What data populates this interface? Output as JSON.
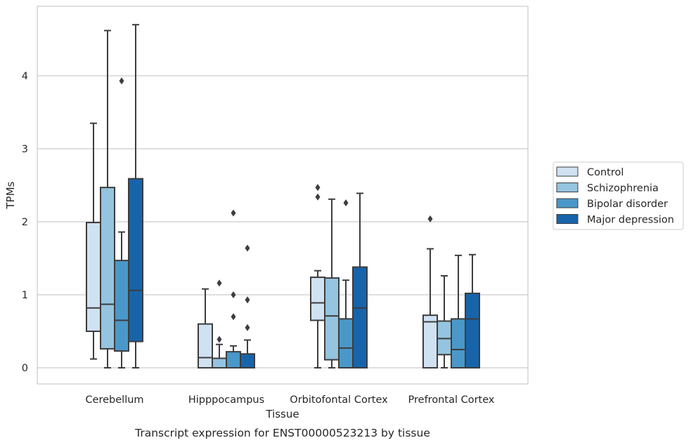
{
  "caption": "Transcript expression for ENST00000523213 by tissue",
  "chart_data": {
    "type": "box",
    "xlabel": "Tissue",
    "ylabel": "TPMs",
    "ylim": [
      -0.23,
      4.95
    ],
    "yticks": [
      0,
      1,
      2,
      3,
      4
    ],
    "grid": "horizontal",
    "legend_position": "right",
    "categories": [
      "Cerebellum",
      "Hipppocampus",
      "Orbitofontal Cortex",
      "Prefrontal Cortex"
    ],
    "series": [
      {
        "name": "Control",
        "color": "#d0e1f2",
        "boxes": [
          {
            "whisker_low": 0.12,
            "q1": 0.5,
            "median": 0.82,
            "q3": 1.99,
            "whisker_high": 3.35,
            "outliers": []
          },
          {
            "whisker_low": 0.0,
            "q1": 0.0,
            "median": 0.14,
            "q3": 0.6,
            "whisker_high": 1.08,
            "outliers": []
          },
          {
            "whisker_low": 0.0,
            "q1": 0.65,
            "median": 0.89,
            "q3": 1.24,
            "whisker_high": 1.33,
            "outliers": [
              2.34,
              2.47
            ]
          },
          {
            "whisker_low": 0.0,
            "q1": 0.0,
            "median": 0.63,
            "q3": 0.72,
            "whisker_high": 1.63,
            "outliers": [
              2.04
            ]
          }
        ]
      },
      {
        "name": "Schizophrenia",
        "color": "#94c4df",
        "boxes": [
          {
            "whisker_low": 0.0,
            "q1": 0.26,
            "median": 0.87,
            "q3": 2.47,
            "whisker_high": 4.62,
            "outliers": []
          },
          {
            "whisker_low": 0.0,
            "q1": 0.0,
            "median": 0.0,
            "q3": 0.13,
            "whisker_high": 0.32,
            "outliers": [
              0.39,
              1.16
            ]
          },
          {
            "whisker_low": 0.0,
            "q1": 0.11,
            "median": 0.71,
            "q3": 1.23,
            "whisker_high": 2.31,
            "outliers": []
          },
          {
            "whisker_low": 0.0,
            "q1": 0.18,
            "median": 0.4,
            "q3": 0.64,
            "whisker_high": 1.26,
            "outliers": []
          }
        ]
      },
      {
        "name": "Bipolar disorder",
        "color": "#4a98c9",
        "boxes": [
          {
            "whisker_low": 0.0,
            "q1": 0.23,
            "median": 0.65,
            "q3": 1.47,
            "whisker_high": 1.86,
            "outliers": [
              3.93
            ]
          },
          {
            "whisker_low": 0.0,
            "q1": 0.0,
            "median": 0.0,
            "q3": 0.22,
            "whisker_high": 0.3,
            "outliers": [
              0.7,
              1.0,
              2.12
            ]
          },
          {
            "whisker_low": 0.0,
            "q1": 0.0,
            "median": 0.27,
            "q3": 0.67,
            "whisker_high": 1.2,
            "outliers": [
              2.26
            ]
          },
          {
            "whisker_low": 0.0,
            "q1": 0.0,
            "median": 0.25,
            "q3": 0.67,
            "whisker_high": 1.54,
            "outliers": []
          }
        ]
      },
      {
        "name": "Major depression",
        "color": "#1764ab",
        "boxes": [
          {
            "whisker_low": 0.0,
            "q1": 0.36,
            "median": 1.06,
            "q3": 2.59,
            "whisker_high": 4.7,
            "outliers": []
          },
          {
            "whisker_low": 0.0,
            "q1": 0.0,
            "median": 0.0,
            "q3": 0.19,
            "whisker_high": 0.38,
            "outliers": [
              0.55,
              0.93,
              1.64
            ]
          },
          {
            "whisker_low": 0.0,
            "q1": 0.0,
            "median": 0.82,
            "q3": 1.38,
            "whisker_high": 2.39,
            "outliers": []
          },
          {
            "whisker_low": 0.0,
            "q1": 0.0,
            "median": 0.67,
            "q3": 1.02,
            "whisker_high": 1.55,
            "outliers": []
          }
        ]
      }
    ]
  }
}
